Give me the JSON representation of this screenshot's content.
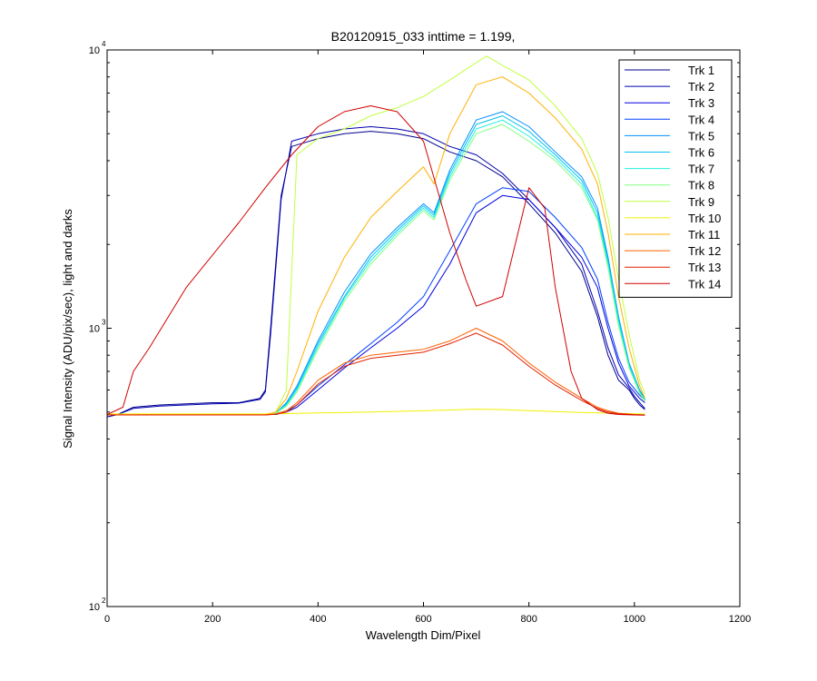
{
  "chart_data": {
    "type": "line",
    "title": "B20120915_033 inttime = 1.199,",
    "xlabel": "Wavelength Dim/Pixel",
    "ylabel": "Signal Intensity (ADU/pix/sec), light and darks",
    "xlim": [
      0,
      1200
    ],
    "ylim": [
      100,
      10000
    ],
    "yscale": "log",
    "x_ticks": [
      0,
      200,
      400,
      600,
      800,
      1000,
      1200
    ],
    "y_ticks": [
      {
        "value": 100,
        "base": "10",
        "exp": "2"
      },
      {
        "value": 1000,
        "base": "10",
        "exp": "3"
      },
      {
        "value": 10000,
        "base": "10",
        "exp": "4"
      }
    ],
    "grid": false,
    "legend_position": "top-right",
    "series": [
      {
        "name": "Trk 1",
        "color": "#00008F",
        "x": [
          0,
          20,
          50,
          100,
          150,
          200,
          250,
          290,
          300,
          310,
          330,
          350,
          400,
          450,
          500,
          550,
          600,
          650,
          700,
          750,
          800,
          850,
          900,
          930,
          950,
          970,
          990,
          1000,
          1010,
          1020
        ],
        "y": [
          480,
          490,
          520,
          530,
          535,
          540,
          540,
          560,
          600,
          1000,
          3000,
          4500,
          4800,
          5000,
          5100,
          5000,
          4800,
          4300,
          4000,
          3500,
          2800,
          2200,
          1600,
          1100,
          800,
          650,
          600,
          560,
          530,
          510
        ]
      },
      {
        "name": "Trk 2",
        "color": "#0000B0",
        "x": [
          0,
          20,
          50,
          100,
          150,
          200,
          250,
          290,
          300,
          310,
          330,
          350,
          400,
          450,
          500,
          550,
          600,
          650,
          700,
          750,
          800,
          850,
          900,
          930,
          950,
          970,
          990,
          1000,
          1010,
          1020
        ],
        "y": [
          480,
          490,
          515,
          525,
          530,
          535,
          538,
          555,
          590,
          950,
          2900,
          4700,
          5000,
          5200,
          5300,
          5200,
          5000,
          4500,
          4200,
          3600,
          2900,
          2300,
          1700,
          1150,
          850,
          680,
          610,
          570,
          540,
          515
        ]
      },
      {
        "name": "Trk 3",
        "color": "#0000DF",
        "x": [
          0,
          300,
          320,
          340,
          360,
          400,
          450,
          500,
          550,
          600,
          650,
          700,
          750,
          800,
          850,
          900,
          930,
          950,
          970,
          990,
          1010,
          1020
        ],
        "y": [
          490,
          490,
          490,
          500,
          520,
          600,
          720,
          850,
          1000,
          1200,
          1700,
          2600,
          3000,
          2900,
          2300,
          1800,
          1400,
          1000,
          750,
          620,
          560,
          540
        ]
      },
      {
        "name": "Trk 4",
        "color": "#0040FF",
        "x": [
          0,
          300,
          320,
          340,
          360,
          400,
          450,
          500,
          550,
          600,
          650,
          700,
          750,
          800,
          850,
          900,
          930,
          950,
          970,
          990,
          1010,
          1020
        ],
        "y": [
          490,
          490,
          492,
          505,
          530,
          620,
          740,
          880,
          1050,
          1300,
          1900,
          2800,
          3200,
          3100,
          2500,
          1950,
          1500,
          1050,
          780,
          640,
          575,
          550
        ]
      },
      {
        "name": "Trk 5",
        "color": "#0090FF",
        "x": [
          0,
          300,
          320,
          340,
          360,
          400,
          450,
          500,
          550,
          600,
          620,
          650,
          700,
          750,
          800,
          850,
          900,
          930,
          950,
          970,
          990,
          1010,
          1020
        ],
        "y": [
          490,
          490,
          495,
          540,
          620,
          900,
          1350,
          1850,
          2300,
          2800,
          2600,
          3700,
          5600,
          6000,
          5300,
          4300,
          3500,
          2700,
          1800,
          1100,
          750,
          600,
          560
        ]
      },
      {
        "name": "Trk 6",
        "color": "#00C0F0",
        "x": [
          0,
          300,
          320,
          340,
          360,
          400,
          450,
          500,
          550,
          600,
          620,
          650,
          700,
          750,
          800,
          850,
          900,
          930,
          950,
          970,
          990,
          1010,
          1020
        ],
        "y": [
          490,
          490,
          495,
          535,
          610,
          880,
          1300,
          1800,
          2250,
          2750,
          2550,
          3600,
          5400,
          5800,
          5100,
          4200,
          3400,
          2600,
          1750,
          1080,
          740,
          595,
          555
        ]
      },
      {
        "name": "Trk 7",
        "color": "#20F0E0",
        "x": [
          0,
          300,
          320,
          340,
          360,
          400,
          450,
          500,
          550,
          600,
          620,
          650,
          700,
          750,
          800,
          850,
          900,
          930,
          950,
          970,
          990,
          1010,
          1020
        ],
        "y": [
          490,
          490,
          495,
          530,
          600,
          860,
          1280,
          1750,
          2200,
          2700,
          2500,
          3500,
          5200,
          5600,
          4900,
          4100,
          3300,
          2500,
          1700,
          1050,
          730,
          590,
          550
        ]
      },
      {
        "name": "Trk 8",
        "color": "#80FF80",
        "x": [
          0,
          300,
          320,
          340,
          360,
          400,
          450,
          500,
          550,
          600,
          620,
          650,
          700,
          750,
          800,
          850,
          900,
          930,
          950,
          970,
          990,
          1010,
          1020
        ],
        "y": [
          490,
          490,
          495,
          525,
          590,
          840,
          1250,
          1700,
          2150,
          2650,
          2450,
          3400,
          5000,
          5400,
          4700,
          4000,
          3200,
          2450,
          1650,
          1020,
          720,
          585,
          545
        ]
      },
      {
        "name": "Trk 9",
        "color": "#C0FF40",
        "x": [
          0,
          300,
          320,
          340,
          360,
          400,
          450,
          500,
          550,
          600,
          650,
          700,
          720,
          750,
          800,
          850,
          900,
          930,
          950,
          970,
          990,
          1010,
          1020
        ],
        "y": [
          490,
          490,
          500,
          600,
          4200,
          4800,
          5200,
          5800,
          6200,
          6800,
          7800,
          9000,
          9500,
          8800,
          7800,
          6300,
          4800,
          3600,
          2500,
          1500,
          950,
          650,
          580
        ]
      },
      {
        "name": "Trk 10",
        "color": "#F0F000",
        "x": [
          0,
          300,
          350,
          400,
          500,
          600,
          700,
          750,
          800,
          900,
          1000,
          1020
        ],
        "y": [
          492,
          492,
          494,
          496,
          500,
          505,
          512,
          510,
          506,
          498,
          493,
          492
        ]
      },
      {
        "name": "Trk 11",
        "color": "#FFB000",
        "x": [
          0,
          300,
          320,
          340,
          360,
          400,
          450,
          500,
          550,
          600,
          620,
          650,
          700,
          750,
          800,
          850,
          900,
          930,
          950,
          970,
          990,
          1010,
          1020
        ],
        "y": [
          490,
          490,
          500,
          560,
          700,
          1150,
          1800,
          2500,
          3100,
          3800,
          3300,
          5000,
          7500,
          8000,
          7000,
          5700,
          4400,
          3300,
          2200,
          1300,
          850,
          620,
          560
        ]
      },
      {
        "name": "Trk 12",
        "color": "#FF6000",
        "x": [
          0,
          300,
          320,
          340,
          360,
          400,
          450,
          500,
          550,
          600,
          650,
          700,
          750,
          800,
          850,
          900,
          930,
          950,
          970,
          1000,
          1020
        ],
        "y": [
          488,
          488,
          492,
          505,
          540,
          650,
          750,
          800,
          820,
          840,
          900,
          1000,
          900,
          750,
          640,
          560,
          520,
          505,
          495,
          490,
          488
        ]
      },
      {
        "name": "Trk 13",
        "color": "#E02000",
        "x": [
          0,
          300,
          320,
          340,
          360,
          400,
          450,
          500,
          550,
          600,
          650,
          700,
          750,
          800,
          850,
          900,
          930,
          950,
          970,
          1000,
          1020
        ],
        "y": [
          488,
          488,
          491,
          500,
          530,
          630,
          730,
          780,
          800,
          820,
          880,
          960,
          870,
          730,
          625,
          550,
          515,
          500,
          493,
          489,
          488
        ]
      },
      {
        "name": "Trk 14",
        "color": "#D00000",
        "x": [
          0,
          30,
          50,
          80,
          150,
          250,
          300,
          350,
          400,
          450,
          500,
          550,
          600,
          650,
          680,
          700,
          750,
          800,
          830,
          850,
          880,
          900,
          930,
          950,
          970,
          1000,
          1020
        ],
        "y": [
          490,
          520,
          700,
          850,
          1400,
          2400,
          3200,
          4200,
          5300,
          6000,
          6300,
          6000,
          4700,
          2200,
          1500,
          1200,
          1300,
          3200,
          2700,
          1400,
          700,
          560,
          510,
          495,
          490,
          488,
          487
        ]
      }
    ]
  }
}
